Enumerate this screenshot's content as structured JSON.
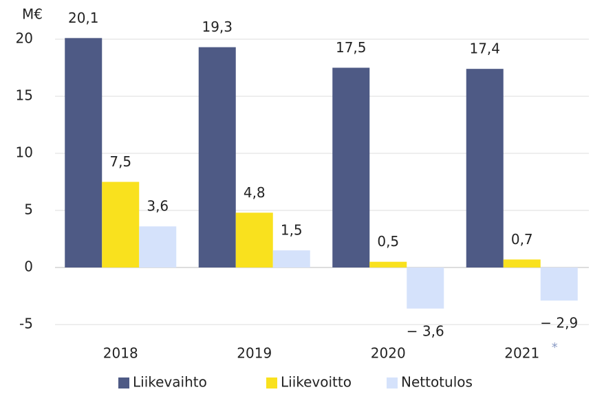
{
  "chart_data": {
    "type": "bar",
    "y_unit": "M€",
    "annotation": "*",
    "categories": [
      "2018",
      "2019",
      "2020",
      "2021"
    ],
    "series": [
      {
        "name": "Liikevaihto",
        "color": "#4e5a85",
        "values": [
          20.1,
          19.3,
          17.5,
          17.4
        ],
        "value_labels": [
          "20,1",
          "19,3",
          "17,5",
          "17,4"
        ]
      },
      {
        "name": "Liikevoitto",
        "color": "#f9e11e",
        "values": [
          7.5,
          4.8,
          0.5,
          0.7
        ],
        "value_labels": [
          "7,5",
          "4,8",
          "0,5",
          "0,7"
        ]
      },
      {
        "name": "Nettotulos",
        "color": "#d5e2fb",
        "values": [
          3.6,
          1.5,
          -3.6,
          -2.9
        ],
        "value_labels": [
          "3,6",
          "1,5",
          "− 3,6",
          "− 2,9"
        ]
      }
    ],
    "ylim": [
      -5,
      20
    ],
    "yticks": [
      -5,
      0,
      5,
      10,
      15,
      20
    ],
    "grid": true,
    "legend": "bottom"
  }
}
